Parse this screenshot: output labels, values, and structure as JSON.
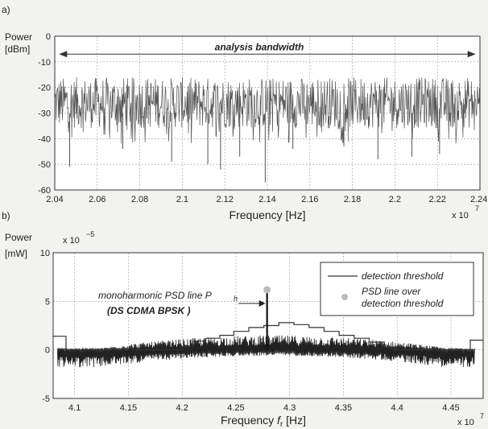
{
  "chart_data": [
    {
      "panel_label": "a)",
      "type": "line",
      "ylabel_line1": "Power",
      "ylabel_line2": "[dBm]",
      "xlabel": "Frequency [Hz]",
      "x_multiplier": "x 10",
      "x_multiplier_exp": "7",
      "xlim": [
        2.04,
        2.24
      ],
      "ylim": [
        -60,
        0
      ],
      "x_ticks": [
        "2.04",
        "2.06",
        "2.08",
        "2.1",
        "2.12",
        "2.14",
        "2.16",
        "2.18",
        "2.2",
        "2.22",
        "2.24"
      ],
      "y_ticks": [
        "0",
        "-10",
        "-20",
        "-30",
        "-40",
        "-50",
        "-60"
      ],
      "annotation": "analysis bandwidth",
      "annotation_range": [
        2.042,
        2.238
      ],
      "annotation_y": -7,
      "grid": true,
      "series": [
        {
          "color": "#555555",
          "noise_band": [
            -36,
            -16
          ],
          "deep_dips": [
            [
              2.047,
              -51
            ],
            [
              2.072,
              -44
            ],
            [
              2.095,
              -49
            ],
            [
              2.112,
              -50
            ],
            [
              2.118,
              -52
            ],
            [
              2.127,
              -47
            ],
            [
              2.139,
              -57
            ],
            [
              2.152,
              -44
            ],
            [
              2.176,
              -43
            ],
            [
              2.192,
              -48
            ],
            [
              2.208,
              -47
            ],
            [
              2.221,
              -46
            ]
          ]
        }
      ]
    },
    {
      "panel_label": "b)",
      "type": "line",
      "ylabel_line1": "Power",
      "ylabel_line2": "[mW]",
      "y_multiplier": "x 10",
      "y_multiplier_exp": "−5",
      "xlabel_main": "Frequency ",
      "xlabel_var": "f",
      "xlabel_sub": "r",
      "xlabel_unit": " [Hz]",
      "x_multiplier": "x 10",
      "x_multiplier_exp": "7",
      "xlim": [
        4.08,
        4.48
      ],
      "ylim": [
        -5,
        10
      ],
      "x_ticks": [
        "4.1",
        "4.15",
        "4.2",
        "4.25",
        "4.3",
        "4.35",
        "4.4",
        "4.45"
      ],
      "y_ticks": [
        "10",
        "5",
        "0",
        "-5"
      ],
      "grid": true,
      "legend": {
        "placement": "top-right",
        "entries": [
          "detection threshold",
          "PSD line over detection threshold"
        ]
      },
      "annotation_line1": "monoharmonic PSD line P",
      "annotation_sub": "h",
      "annotation_line2": "(DS CDMA BPSK  )",
      "peak": {
        "x": 4.279,
        "y": 6.1
      },
      "threshold_steps": [
        [
          4.08,
          1.4
        ],
        [
          4.092,
          0.0
        ],
        [
          4.19,
          0.0
        ],
        [
          4.2,
          0.3
        ],
        [
          4.21,
          0.9
        ],
        [
          4.222,
          1.2
        ],
        [
          4.235,
          1.5
        ],
        [
          4.248,
          1.9
        ],
        [
          4.262,
          2.3
        ],
        [
          4.276,
          2.5
        ],
        [
          4.29,
          2.8
        ],
        [
          4.304,
          2.6
        ],
        [
          4.318,
          2.3
        ],
        [
          4.332,
          1.9
        ],
        [
          4.346,
          1.5
        ],
        [
          4.36,
          1.2
        ],
        [
          4.374,
          0.8
        ],
        [
          4.388,
          0.3
        ],
        [
          4.398,
          0.0
        ],
        [
          4.466,
          0.0
        ],
        [
          4.468,
          1.0
        ],
        [
          4.48,
          1.0
        ]
      ],
      "series": [
        {
          "name": "detection threshold",
          "color": "#333333"
        },
        {
          "name": "PSD line over detection threshold",
          "color": "#bbbbbb"
        }
      ]
    }
  ]
}
